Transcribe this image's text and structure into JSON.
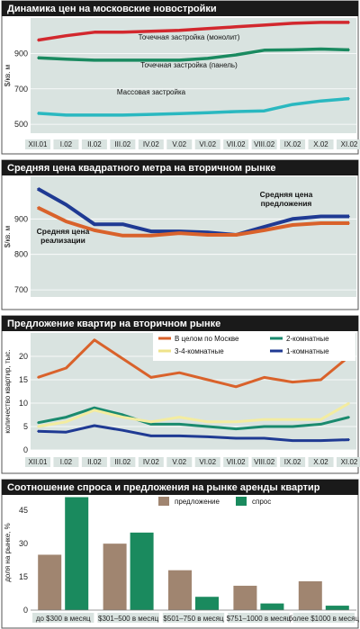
{
  "chart_data": [
    {
      "type": "line",
      "title": "Динамика цен на московские новостройки",
      "ylabel": "$/кв. м",
      "ylim": [
        450,
        1100
      ],
      "yticks": [
        500,
        700,
        900
      ],
      "categories": [
        "XII.01",
        "I.02",
        "II.02",
        "III.02",
        "IV.02",
        "V.02",
        "VI.02",
        "VII.02",
        "VIII.02",
        "IX.02",
        "X.02",
        "XI.02"
      ],
      "series": [
        {
          "name": "Точечная застройка (монолит)",
          "color": "#d2282e",
          "values": [
            975,
            1000,
            1020,
            1020,
            1025,
            1030,
            1040,
            1050,
            1060,
            1070,
            1075,
            1075
          ]
        },
        {
          "name": "Точечная застройка (панель)",
          "color": "#1a8a60",
          "values": [
            875,
            868,
            862,
            862,
            862,
            862,
            872,
            892,
            918,
            920,
            925,
            920
          ]
        },
        {
          "name": "Массовая застройка",
          "color": "#2ab8c0",
          "values": [
            562,
            552,
            552,
            552,
            556,
            560,
            566,
            572,
            576,
            612,
            632,
            645
          ]
        }
      ]
    },
    {
      "type": "line",
      "title": "Средняя цена квадратного метра на вторичном рынке",
      "ylabel": "$/кв. м",
      "ylim": [
        680,
        1020
      ],
      "yticks": [
        700,
        800,
        900
      ],
      "categories": [
        "XII.01",
        "I.02",
        "II.02",
        "III.02",
        "IV.02",
        "V.02",
        "VI.02",
        "VII.02",
        "VIII.02",
        "IX.02",
        "X.02",
        "XI.02"
      ],
      "annotations": [
        {
          "lines": [
            "Средняя цена",
            "предложения"
          ]
        },
        {
          "lines": [
            "Средняя цена",
            "реализации"
          ]
        }
      ],
      "series": [
        {
          "name": "Средняя цена предложения",
          "color": "#1f3a93",
          "values": [
            985,
            940,
            885,
            885,
            865,
            865,
            862,
            855,
            878,
            900,
            907,
            907
          ]
        },
        {
          "name": "Средняя цена реализации",
          "color": "#d9622b",
          "values": [
            932,
            893,
            868,
            853,
            853,
            860,
            855,
            855,
            868,
            883,
            888,
            888
          ]
        }
      ]
    },
    {
      "type": "line",
      "title": "Предложение квартир на вторичном рынке",
      "ylabel": "количество квартир, тыс.",
      "ylim": [
        0,
        25
      ],
      "yticks": [
        0,
        5,
        10,
        15,
        20
      ],
      "categories": [
        "XII.01",
        "I.02",
        "II.02",
        "III.02",
        "IV.02",
        "V.02",
        "VI.02",
        "VII.02",
        "VIII.02",
        "IX.02",
        "X.02",
        "XI.02"
      ],
      "legend": "top-right",
      "series": [
        {
          "name": "В целом по Москве",
          "color": "#d9622b",
          "values": [
            15.5,
            17.5,
            23.5,
            19.5,
            15.5,
            16.5,
            15,
            13.5,
            15.5,
            14.5,
            15,
            20
          ]
        },
        {
          "name": "2-комнатные",
          "color": "#1a8a6e",
          "values": [
            5.8,
            7,
            9,
            7.5,
            5.5,
            5.5,
            5,
            4.5,
            5,
            5,
            5.5,
            7
          ]
        },
        {
          "name": "3-4-комнатные",
          "color": "#f3eca0",
          "values": [
            5,
            6,
            8.5,
            7,
            6,
            7,
            6,
            6,
            6.5,
            6.5,
            6.5,
            10
          ]
        },
        {
          "name": "1-комнатные",
          "color": "#1f3a93",
          "values": [
            4,
            3.8,
            5.2,
            4.2,
            3,
            3,
            2.8,
            2.5,
            2.5,
            2,
            2,
            2.2
          ]
        }
      ]
    },
    {
      "type": "bar",
      "title": "Соотношение спроса и предложения на рынке аренды квартир",
      "ylabel": "доля на рынке, %",
      "ylim": [
        0,
        52
      ],
      "yticks": [
        0,
        15,
        30,
        45
      ],
      "categories": [
        "до $300 в месяц",
        "$301–500 в месяц",
        "$501–750 в месяц",
        "$751–1000 в месяц",
        "более $1000 в месяц"
      ],
      "legend": "top",
      "series": [
        {
          "name": "предложение",
          "color": "#a08570",
          "values": [
            25,
            30,
            18,
            11,
            13
          ]
        },
        {
          "name": "спрос",
          "color": "#1a8a5e",
          "values": [
            51,
            35,
            6,
            3,
            2
          ]
        }
      ]
    }
  ]
}
